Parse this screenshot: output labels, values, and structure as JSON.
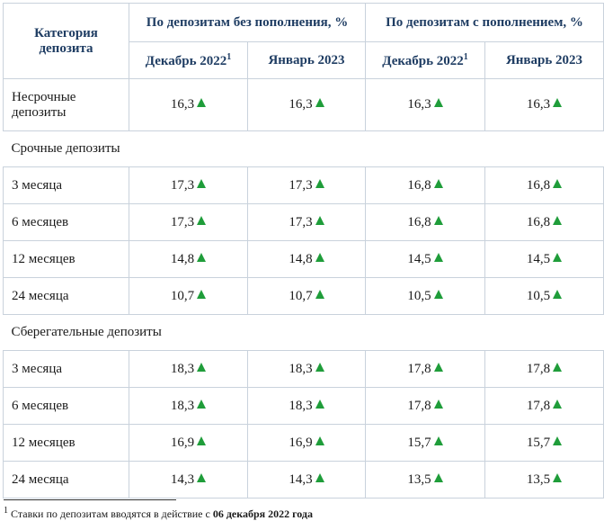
{
  "header": {
    "category": "Категория депозита",
    "group1": "По депозитам без пополнения, %",
    "group2": "По депозитам с пополнением, %",
    "col_dec": "Декабрь 2022",
    "col_dec_sup": "1",
    "col_jan": "Январь 2023"
  },
  "rows": {
    "nonterm": {
      "label": "Несрочные депозиты",
      "v": [
        "16,3",
        "16,3",
        "16,3",
        "16,3"
      ]
    },
    "section_term": "Срочные депозиты",
    "t3": {
      "label": "3 месяца",
      "v": [
        "17,3",
        "17,3",
        "16,8",
        "16,8"
      ]
    },
    "t6": {
      "label": "6 месяцев",
      "v": [
        "17,3",
        "17,3",
        "16,8",
        "16,8"
      ]
    },
    "t12": {
      "label": "12 месяцев",
      "v": [
        "14,8",
        "14,8",
        "14,5",
        "14,5"
      ]
    },
    "t24": {
      "label": "24 месяца",
      "v": [
        "10,7",
        "10,7",
        "10,5",
        "10,5"
      ]
    },
    "section_savings": "Сберегательные депозиты",
    "s3": {
      "label": "3 месяца",
      "v": [
        "18,3",
        "18,3",
        "17,8",
        "17,8"
      ]
    },
    "s6": {
      "label": "6 месяцев",
      "v": [
        "18,3",
        "18,3",
        "17,8",
        "17,8"
      ]
    },
    "s12": {
      "label": "12 месяцев",
      "v": [
        "16,9",
        "16,9",
        "15,7",
        "15,7"
      ]
    },
    "s24": {
      "label": "24 месяца",
      "v": [
        "14,3",
        "14,3",
        "13,5",
        "13,5"
      ]
    }
  },
  "trend_icon": "up-arrow-icon",
  "trend_color": "#1f9d3a",
  "footnote": {
    "sup": "1",
    "text": " Ставки по депозитам вводятся в действие с ",
    "bold": "06 декабря 2022 года"
  }
}
